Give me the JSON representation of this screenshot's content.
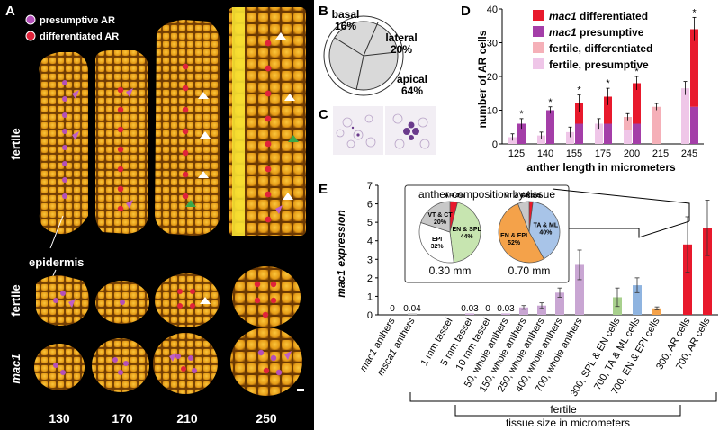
{
  "panel_labels": {
    "a": "A",
    "b": "B",
    "c": "C",
    "d": "D",
    "e": "E"
  },
  "panel_a": {
    "legend": {
      "presumptive": "presumptive AR",
      "differentiated": "differentiated AR"
    },
    "row_labels": [
      "fertile",
      "fertile",
      "mac1"
    ],
    "epidermis_label": "epidermis",
    "stage_labels": [
      "130",
      "170",
      "210",
      "250"
    ],
    "colors": {
      "background": "#000000",
      "tissue": "#e9a321",
      "presumptive": "#b450b8",
      "differentiated": "#e0233a"
    }
  },
  "panel_b": {
    "sectors": [
      {
        "name": "basal",
        "percent": "16%"
      },
      {
        "name": "lateral",
        "percent": "20%"
      },
      {
        "name": "apical",
        "percent": "64%"
      }
    ]
  },
  "chart_data": [
    {
      "panel": "D",
      "type": "bar",
      "xlabel": "anther length in micrometers",
      "ylabel": "number of AR cells",
      "ylim": [
        0,
        40
      ],
      "yticks": [
        0,
        10,
        20,
        30,
        40
      ],
      "categories": [
        "125",
        "140",
        "155",
        "175",
        "200",
        "215",
        "245"
      ],
      "legend_position": "top-right",
      "significance": [
        "*",
        "*",
        "*",
        "*",
        "*",
        "",
        "*"
      ],
      "series": [
        {
          "name": "mac1 differentiated",
          "color": "#e8192c",
          "values": [
            0,
            0,
            6,
            8,
            12,
            0,
            23
          ]
        },
        {
          "name": "mac1 presumptive",
          "color": "#a43ea8",
          "values": [
            6,
            10,
            6,
            6,
            6,
            0,
            11
          ]
        },
        {
          "name": "fertile, differentiated",
          "color": "#f5b0b8",
          "values": [
            0,
            0,
            0,
            0,
            4,
            11,
            0
          ]
        },
        {
          "name": "fertile, presumptive",
          "color": "#efc6e8",
          "values": [
            2,
            2.5,
            3.5,
            6,
            4,
            0,
            16.5
          ]
        }
      ],
      "errors": {
        "mac1": [
          1.5,
          1,
          2.5,
          2.5,
          2,
          0,
          3.5
        ],
        "fertile": [
          1,
          1,
          1.5,
          1.5,
          1,
          1,
          2
        ]
      }
    },
    {
      "panel": "E",
      "type": "bar",
      "ylabel": "mac1 expression",
      "ylim": [
        0,
        7
      ],
      "yticks": [
        0,
        1,
        2,
        3,
        4,
        5,
        6,
        7
      ],
      "categories": [
        "mac1 anthers",
        "msca1 anthers",
        "1 mm tassel",
        "5 mm tassel",
        "10 mm tassel",
        "50, whole anthers",
        "150, whole anthers",
        "250, whole anthers",
        "400, whole anthers",
        "700, whole anthers",
        "300, SPL & EN cells",
        "700, TA & ML cells",
        "700, EN & EPI cells",
        "300, AR cells",
        "700, AR cells"
      ],
      "values": [
        0,
        0.04,
        0,
        0.03,
        0,
        0.03,
        0.4,
        0.5,
        1.2,
        2.7,
        0.95,
        1.6,
        0.35,
        3.8,
        4.7
      ],
      "errors": [
        0,
        0,
        0,
        0,
        0,
        0,
        0.1,
        0.15,
        0.25,
        0.8,
        0.5,
        0.4,
        0.08,
        1.5,
        1.5
      ],
      "value_labels": [
        "0",
        "0.04",
        "",
        "0.03",
        "0",
        "0.03",
        "",
        "",
        "",
        "",
        "",
        "",
        "",
        "",
        ""
      ],
      "colors": [
        "#b8b8b8",
        "#b8b8b8",
        "#c9a6d3",
        "#c9a6d3",
        "#c9a6d3",
        "#c9a6d3",
        "#c9a6d3",
        "#c9a6d3",
        "#c9a6d3",
        "#c9a6d3",
        "#a8d08d",
        "#8fb4e0",
        "#f4a24a",
        "#e8192c",
        "#e8192c"
      ],
      "bracket_label": "fertile",
      "axis_caption": "tissue size in micrometers"
    },
    {
      "panel": "E-inset",
      "type": "pie",
      "title": "anther composition by tissue",
      "pies": [
        {
          "label": "0.30 mm",
          "slices": [
            {
              "name": "AR 4%",
              "value": 4,
              "color": "#e8192c"
            },
            {
              "name": "EN & SPL 44%",
              "value": 44,
              "color": "#c7e5b0"
            },
            {
              "name": "EPI 32%",
              "value": 32,
              "color": "#ffffff"
            },
            {
              "name": "VT & CT 20%",
              "value": 20,
              "color": "#c8c8c8"
            }
          ]
        },
        {
          "label": "0.70 mm",
          "slices": [
            {
              "name": "AR 2%",
              "value": 2,
              "color": "#e8192c"
            },
            {
              "name": "TA & ML 40%",
              "value": 40,
              "color": "#a8c4e8"
            },
            {
              "name": "EN & EPI 52%",
              "value": 52,
              "color": "#f4a24a"
            },
            {
              "name": "VT & CT 6%",
              "value": 6,
              "color": "#c8c8c8"
            }
          ]
        }
      ]
    }
  ]
}
